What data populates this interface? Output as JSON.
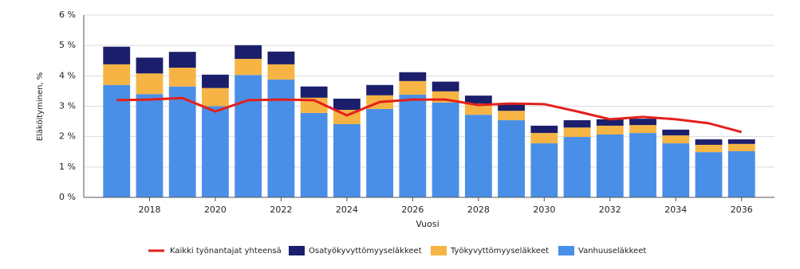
{
  "chart_data": {
    "type": "bar",
    "stacked": true,
    "x": [
      2017,
      2018,
      2019,
      2020,
      2021,
      2022,
      2023,
      2024,
      2025,
      2026,
      2027,
      2028,
      2029,
      2030,
      2031,
      2032,
      2033,
      2034,
      2035,
      2036
    ],
    "xlim": [
      2016,
      2037
    ],
    "xticks": [
      2018,
      2020,
      2022,
      2024,
      2026,
      2028,
      2030,
      2032,
      2034,
      2036
    ],
    "ylim": [
      0,
      6
    ],
    "yticks": [
      {
        "value": 0,
        "label": "0 %"
      },
      {
        "value": 1,
        "label": "1 %"
      },
      {
        "value": 2,
        "label": "2 %"
      },
      {
        "value": 3,
        "label": "3 %"
      },
      {
        "value": 4,
        "label": "4 %"
      },
      {
        "value": 5,
        "label": "5 %"
      },
      {
        "value": 6,
        "label": "6 %"
      }
    ],
    "x_label": "Vuosi",
    "y_label": "Eläköityminen, %",
    "grid": true,
    "legend": "bottom",
    "series": [
      {
        "name": "Kaikki työnantajat yhteensä",
        "type": "line",
        "color": "#e3201b",
        "values": [
          3.2,
          3.22,
          3.27,
          2.83,
          3.2,
          3.22,
          3.2,
          2.7,
          3.14,
          3.22,
          3.22,
          3.04,
          3.09,
          3.07,
          2.83,
          2.57,
          2.65,
          2.57,
          2.44,
          2.15
        ]
      },
      {
        "name": "Osatyökyvyttömyyseläkkeet",
        "type": "bar",
        "color": "#1b1f6b",
        "values": [
          0.58,
          0.52,
          0.52,
          0.44,
          0.45,
          0.42,
          0.37,
          0.37,
          0.34,
          0.29,
          0.32,
          0.26,
          0.24,
          0.24,
          0.24,
          0.21,
          0.21,
          0.19,
          0.18,
          0.15
        ]
      },
      {
        "name": "Työkyvyttömyyseläkkeet",
        "type": "bar",
        "color": "#f6b444",
        "values": [
          0.68,
          0.68,
          0.62,
          0.6,
          0.53,
          0.5,
          0.5,
          0.47,
          0.45,
          0.45,
          0.37,
          0.37,
          0.31,
          0.34,
          0.31,
          0.29,
          0.26,
          0.26,
          0.24,
          0.24
        ]
      },
      {
        "name": "Vanhuuseläkkeet",
        "type": "bar",
        "color": "#4a8fe7",
        "values": [
          3.7,
          3.4,
          3.65,
          3.0,
          4.03,
          3.88,
          2.78,
          2.41,
          2.91,
          3.38,
          3.12,
          2.72,
          2.54,
          1.78,
          1.99,
          2.07,
          2.12,
          1.78,
          1.49,
          1.52
        ]
      }
    ]
  }
}
